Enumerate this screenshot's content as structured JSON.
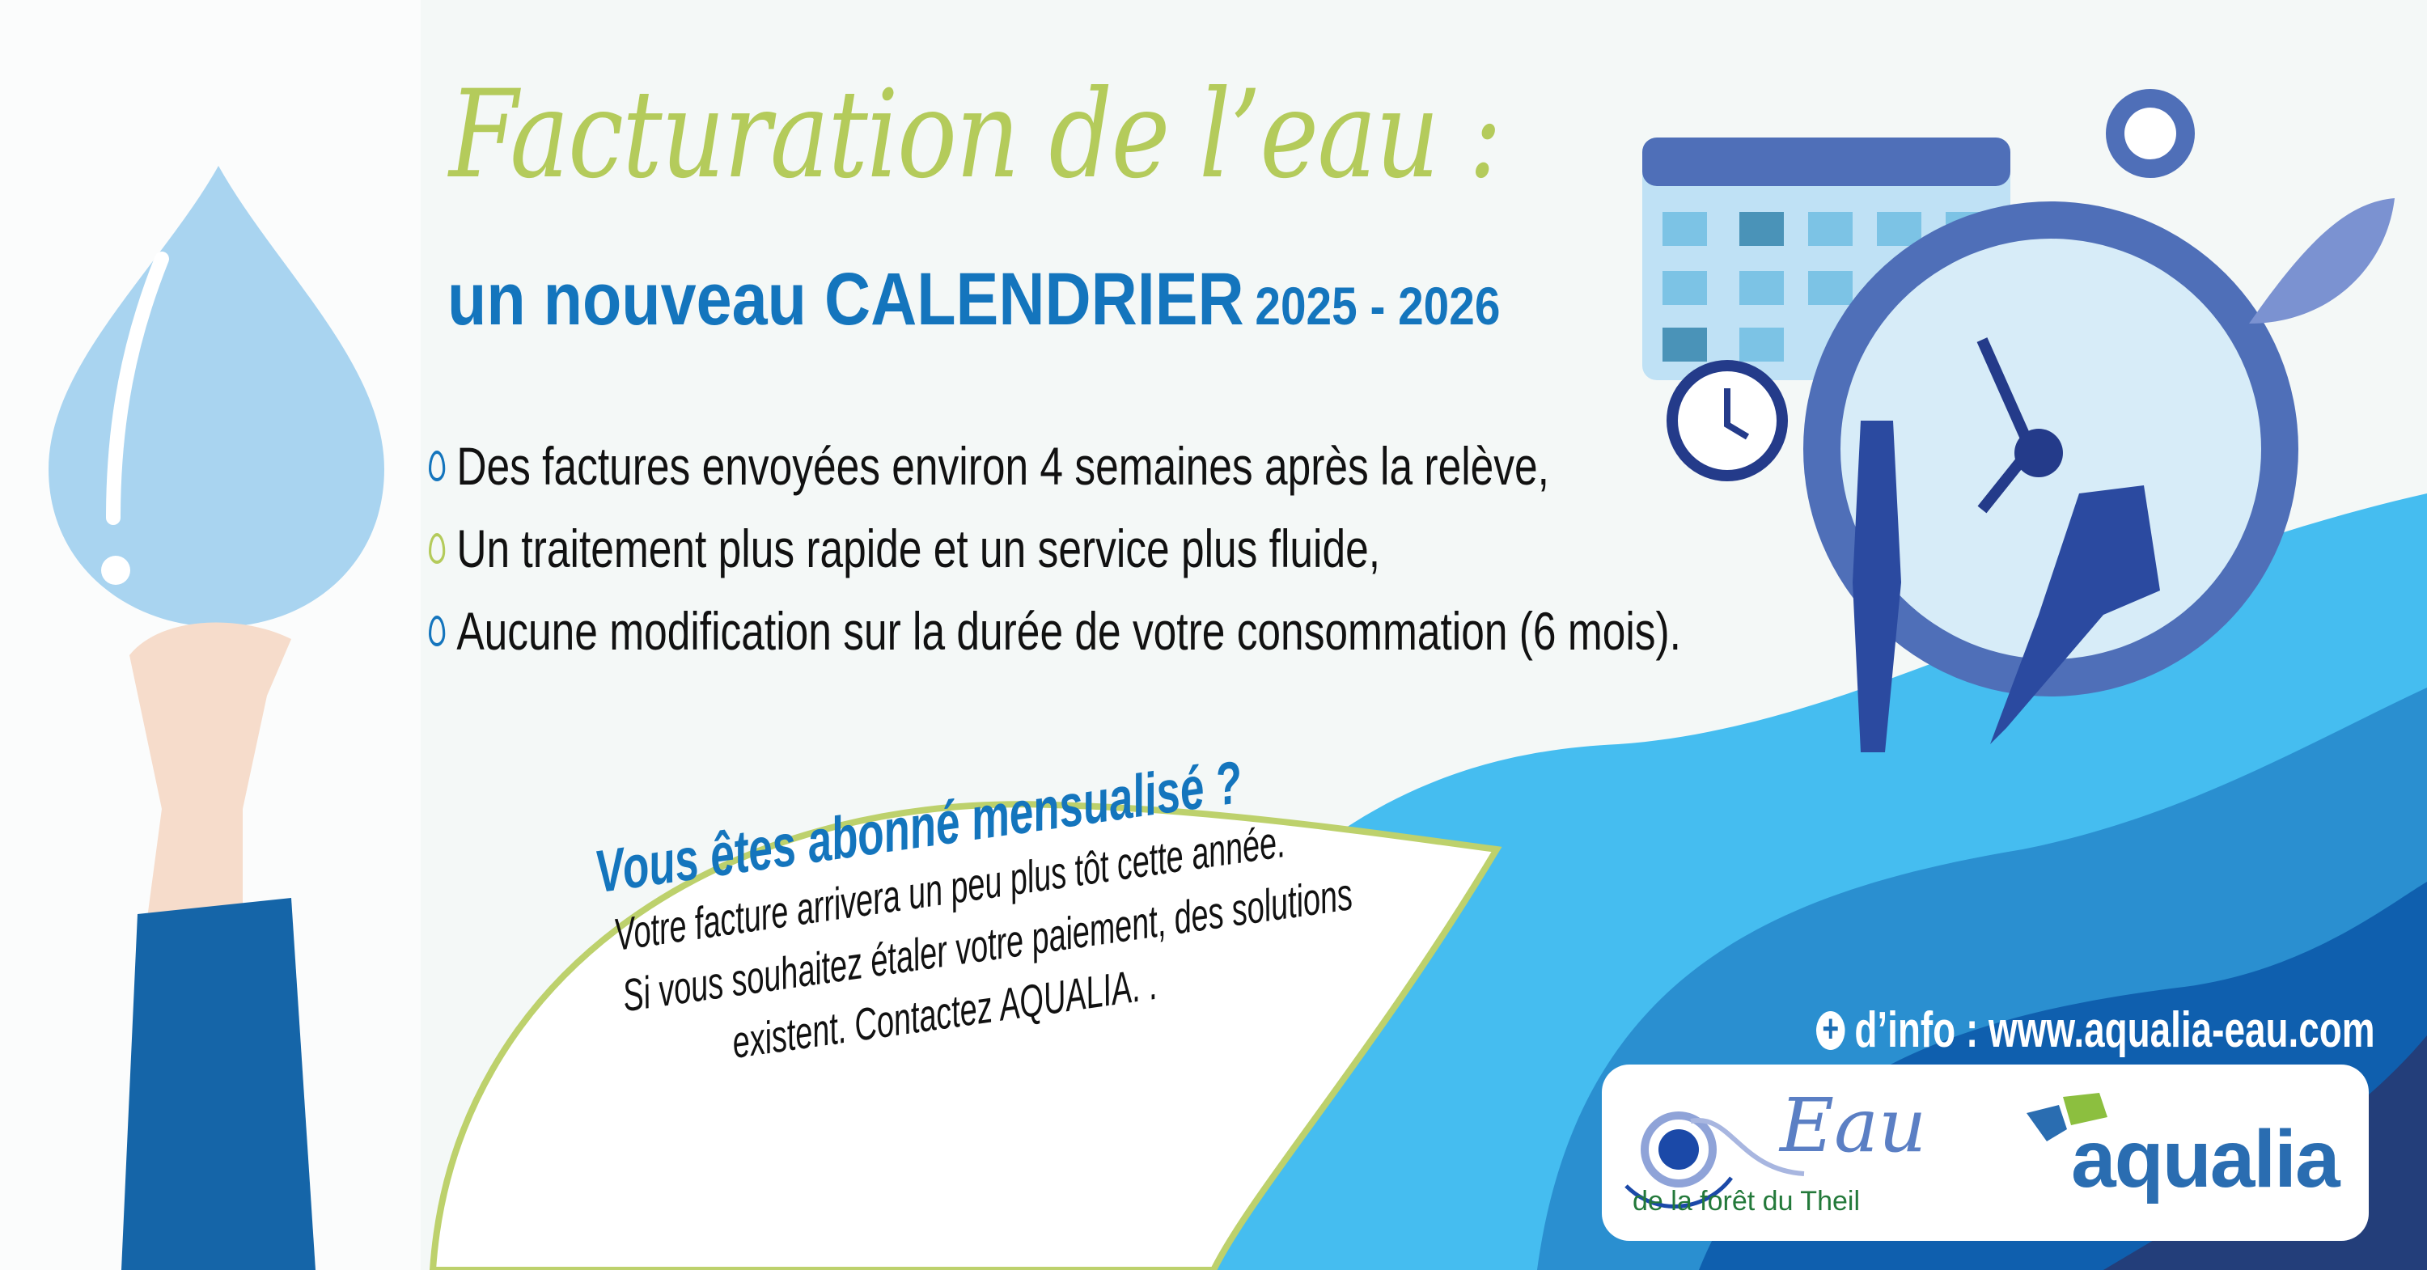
{
  "title": "Facturation de l’eau :",
  "subtitle": {
    "main": "un nouveau CALENDRIER",
    "years": "2025 - 2026"
  },
  "bullets": [
    {
      "text": "Des factures envoyées environ 4 semaines après la relève,",
      "icon": "water-drop-icon",
      "color": "#1475bd"
    },
    {
      "text": "Un traitement plus rapide et un service plus fluide,",
      "icon": "water-drop-icon",
      "color": "#b4cb5b"
    },
    {
      "text": "Aucune modification sur la durée de votre consommation (6 mois).",
      "icon": "water-drop-icon",
      "color": "#1475bd"
    }
  ],
  "callout": {
    "heading": "Vous êtes abonné mensualisé ?",
    "lines": [
      "Votre facture arrivera un peu plus tôt cette année.",
      "Si vous souhaitez étaler votre paiement, des solutions",
      "existent. Contactez AQUALIA. ."
    ]
  },
  "info": "d’info : www.aqualia-eau.com",
  "logos": {
    "eau": "Eau",
    "eau_sub": "de la forêt du Theil",
    "aqualia": "aqualia"
  },
  "colors": {
    "green": "#b4cb5b",
    "blue": "#1475bd",
    "wave_light": "#45bdf0",
    "wave_mid": "#2a8fd0",
    "wave_dark": "#0f5fae",
    "navy": "#233e7a"
  }
}
